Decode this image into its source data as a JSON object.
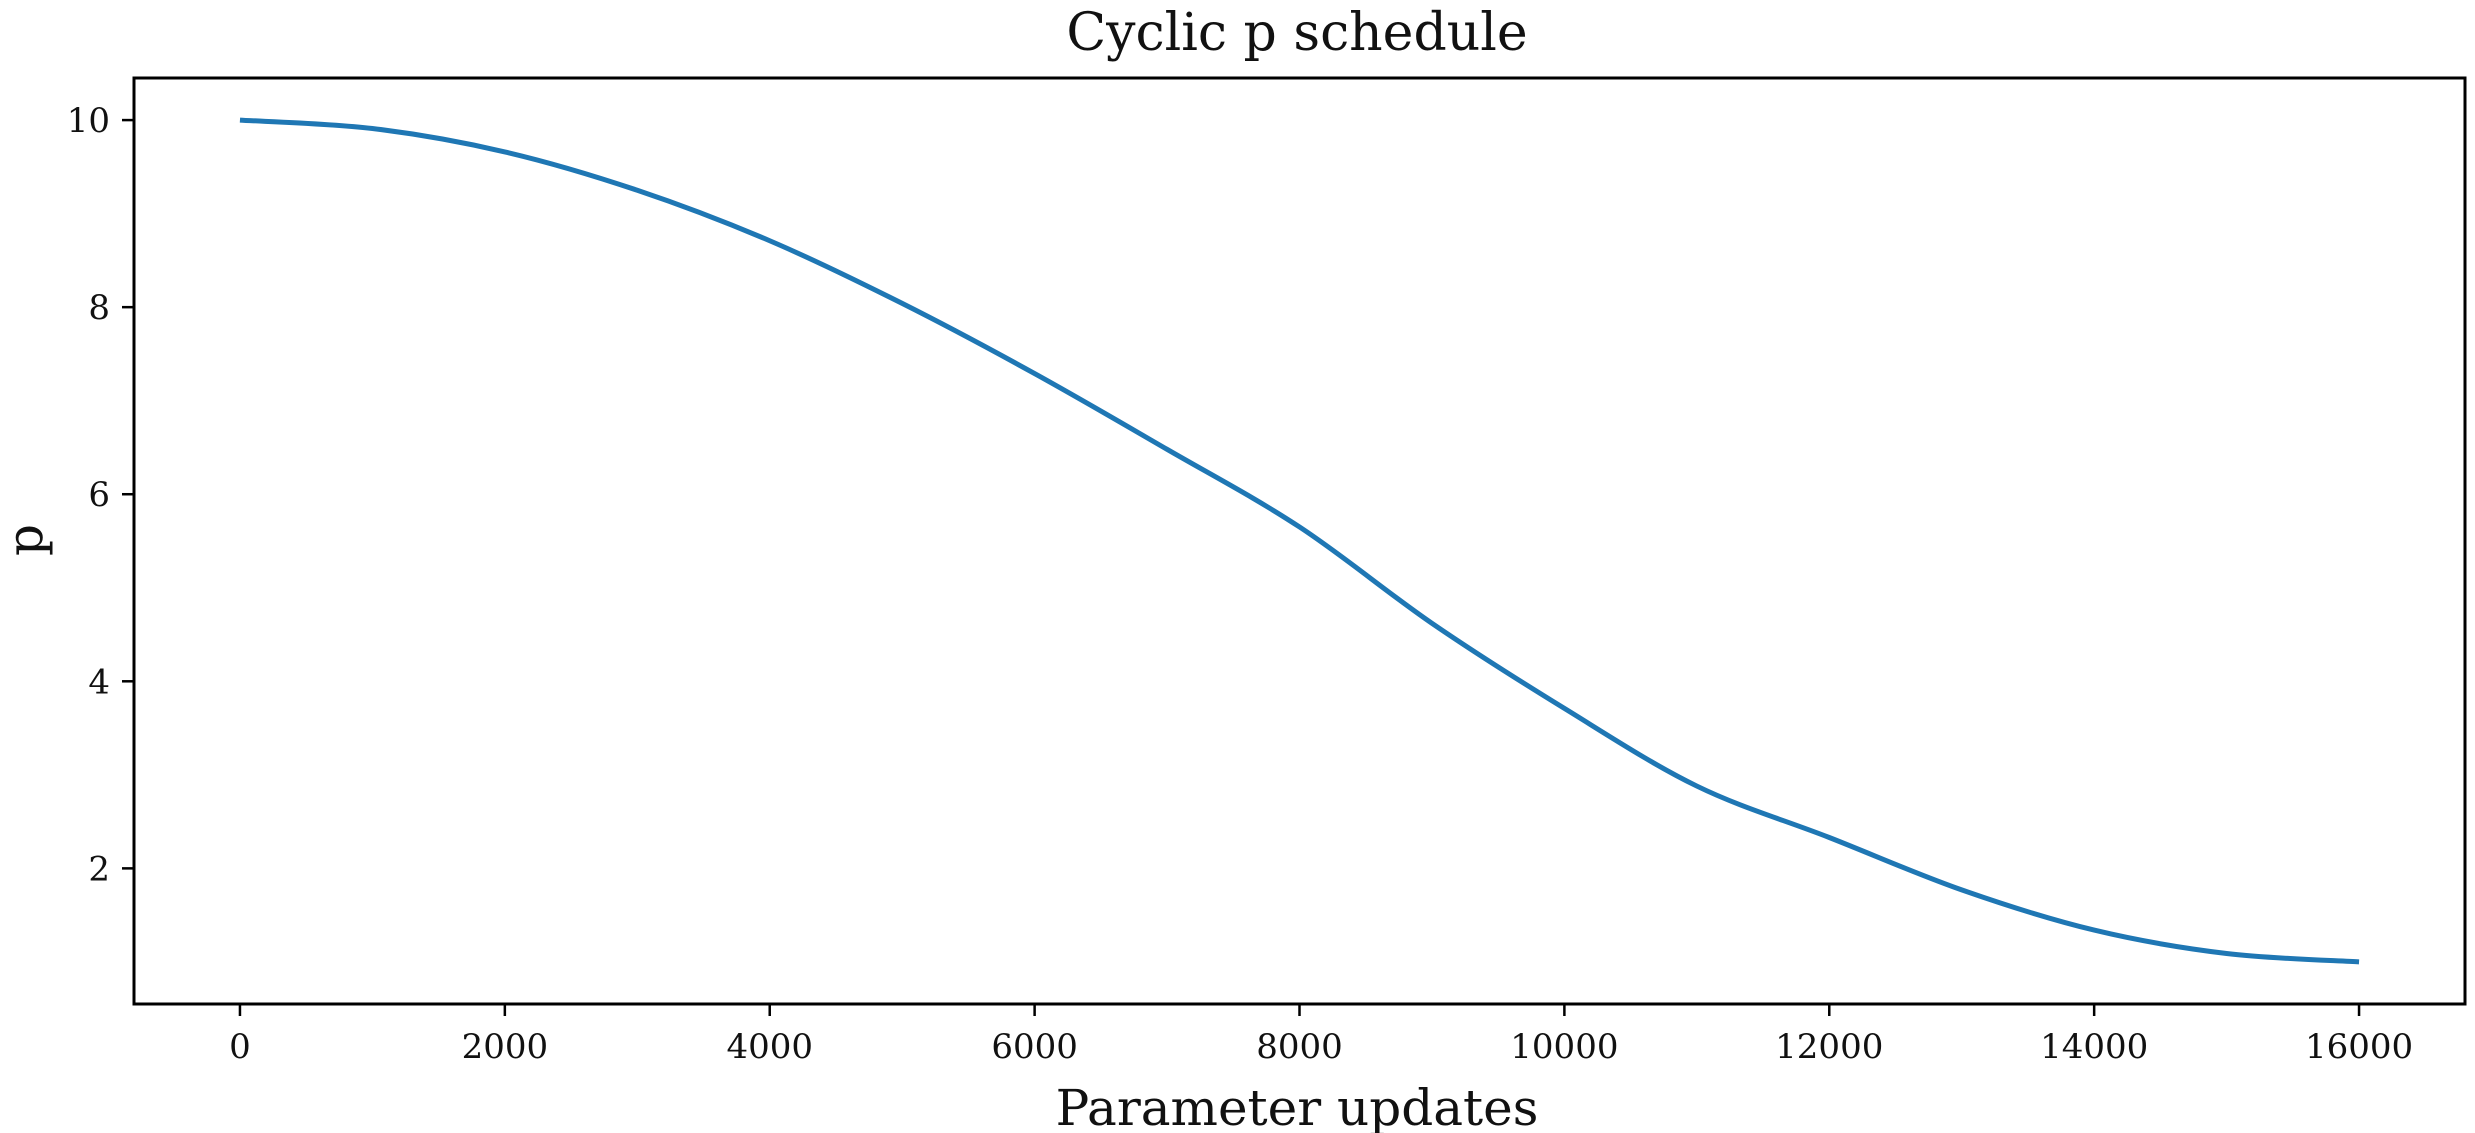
{
  "chart_data": {
    "type": "line",
    "title": "Cyclic p schedule",
    "xlabel": "Parameter updates",
    "ylabel": "p",
    "xlim": [
      -800,
      16800
    ],
    "ylim": [
      0.55,
      10.45
    ],
    "xticks": [
      0,
      2000,
      4000,
      6000,
      8000,
      10000,
      12000,
      14000,
      16000
    ],
    "xtick_labels": [
      "0",
      "2000",
      "4000",
      "6000",
      "8000",
      "10000",
      "12000",
      "14000",
      "16000"
    ],
    "yticks": [
      2,
      4,
      6,
      8,
      10
    ],
    "ytick_labels": [
      "2",
      "4",
      "6",
      "8",
      "10"
    ],
    "grid": false,
    "series": [
      {
        "color": "#1f77b4",
        "x": [
          0,
          1000,
          2000,
          3000,
          4000,
          5000,
          6000,
          7000,
          8000,
          9000,
          10000,
          11000,
          12000,
          13000,
          14000,
          15000,
          16000
        ],
        "y": [
          10.0,
          9.91,
          9.66,
          9.25,
          8.71,
          8.04,
          7.29,
          6.48,
          5.65,
          4.62,
          3.71,
          2.88,
          2.33,
          1.77,
          1.34,
          1.09,
          1.0
        ]
      }
    ]
  }
}
